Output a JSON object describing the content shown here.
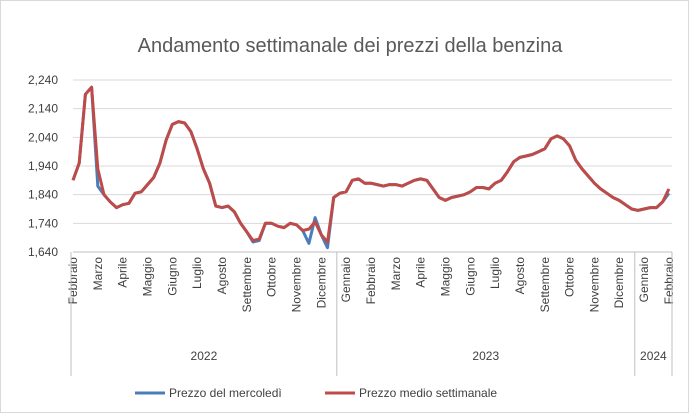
{
  "chart_data": {
    "type": "line",
    "title": "Andamento settimanale dei prezzi della benzina",
    "categories": [
      "Febbraio",
      null,
      null,
      null,
      "Marzo",
      null,
      null,
      null,
      "Aprile",
      null,
      null,
      null,
      "Maggio",
      null,
      null,
      null,
      "Giugno",
      null,
      null,
      null,
      "Luglio",
      null,
      null,
      null,
      "Agosto",
      null,
      null,
      null,
      "Settembre",
      null,
      null,
      null,
      "Ottobre",
      null,
      null,
      null,
      "Novembre",
      null,
      null,
      null,
      "Dicembre",
      null,
      null,
      null,
      "Gennaio",
      null,
      null,
      null,
      "Febbraio",
      null,
      null,
      null,
      "Marzo",
      null,
      null,
      null,
      "Aprile",
      null,
      null,
      null,
      "Maggio",
      null,
      null,
      null,
      "Giugno",
      null,
      null,
      null,
      "Luglio",
      null,
      null,
      null,
      "Agosto",
      null,
      null,
      null,
      "Settembre",
      null,
      null,
      null,
      "Ottobre",
      null,
      null,
      null,
      "Novembre",
      null,
      null,
      null,
      "Dicembre",
      null,
      null,
      null,
      "Gennaio",
      null,
      null,
      null,
      "Febbraio"
    ],
    "x_groups": [
      "2022",
      "2023",
      "2024"
    ],
    "series": [
      {
        "name": "Prezzo del mercoledì",
        "color": "#4a7ebb",
        "values": [
          1890,
          1950,
          2190,
          2215,
          1870,
          1840,
          1815,
          1795,
          1805,
          1810,
          1845,
          1850,
          1875,
          1900,
          1950,
          2030,
          2085,
          2095,
          2090,
          2060,
          2000,
          1930,
          1880,
          1800,
          1795,
          1800,
          1780,
          1740,
          1710,
          1675,
          1680,
          1740,
          1740,
          1730,
          1725,
          1740,
          1735,
          1715,
          1670,
          1760,
          1700,
          1655,
          1830,
          1845,
          1850,
          1890,
          1895,
          1880,
          1880,
          1875,
          1870,
          1875,
          1875,
          1870,
          1880,
          1890,
          1895,
          1890,
          1860,
          1830,
          1820,
          1830,
          1835,
          1840,
          1850,
          1865,
          1865,
          1860,
          1880,
          1890,
          1920,
          1955,
          1970,
          1975,
          1980,
          1990,
          2000,
          2035,
          2045,
          2035,
          2010,
          1960,
          1930,
          1905,
          1880,
          1860,
          1845,
          1830,
          1820,
          1805,
          1790,
          1785,
          1790,
          1795,
          1795,
          1815,
          1845
        ]
      },
      {
        "name": "Prezzo medio settimanale",
        "color": "#be4b48",
        "values": [
          1890,
          1950,
          2190,
          2215,
          1930,
          1840,
          1815,
          1795,
          1805,
          1810,
          1845,
          1850,
          1875,
          1900,
          1950,
          2030,
          2085,
          2095,
          2090,
          2060,
          2000,
          1930,
          1880,
          1800,
          1795,
          1800,
          1780,
          1740,
          1710,
          1680,
          1685,
          1740,
          1740,
          1730,
          1725,
          1740,
          1735,
          1715,
          1720,
          1745,
          1700,
          1675,
          1830,
          1845,
          1850,
          1890,
          1895,
          1880,
          1880,
          1875,
          1870,
          1875,
          1875,
          1870,
          1880,
          1890,
          1895,
          1890,
          1860,
          1830,
          1820,
          1830,
          1835,
          1840,
          1850,
          1865,
          1865,
          1860,
          1880,
          1890,
          1920,
          1955,
          1970,
          1975,
          1980,
          1990,
          2000,
          2035,
          2045,
          2035,
          2010,
          1960,
          1930,
          1905,
          1880,
          1860,
          1845,
          1830,
          1820,
          1805,
          1790,
          1785,
          1790,
          1795,
          1795,
          1815,
          1860
        ]
      }
    ],
    "ylim": [
      1640,
      2240
    ],
    "yticks": [
      {
        "value": 1640,
        "label": "1,640"
      },
      {
        "value": 1740,
        "label": "1,740"
      },
      {
        "value": 1840,
        "label": "1,840"
      },
      {
        "value": 1940,
        "label": "1,940"
      },
      {
        "value": 2040,
        "label": "2,040"
      },
      {
        "value": 2140,
        "label": "2,140"
      },
      {
        "value": 2240,
        "label": "2,240"
      }
    ],
    "grid": true,
    "legend": "bottom"
  }
}
